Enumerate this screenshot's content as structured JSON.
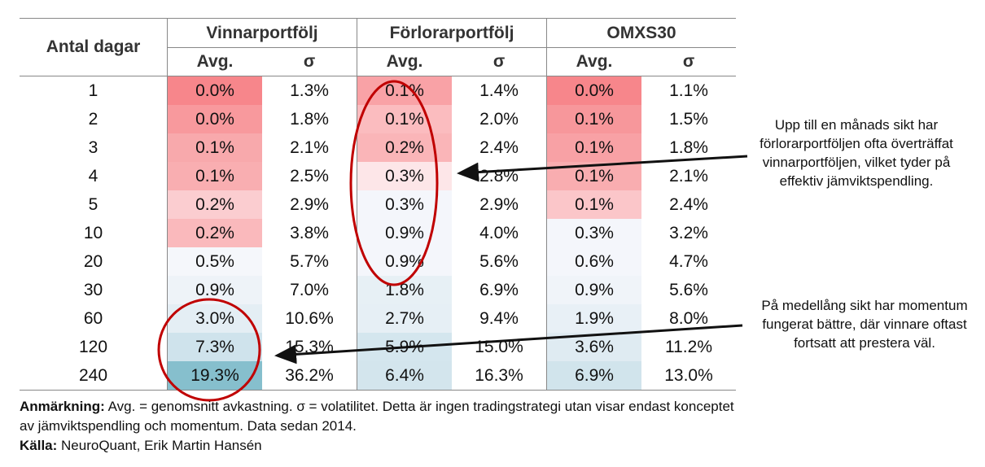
{
  "table": {
    "header": {
      "first": "Antal dagar",
      "groups": [
        "Vinnarportfölj",
        "Förlorarportfölj",
        "OMXS30"
      ],
      "sub": [
        "Avg.",
        "σ",
        "Avg.",
        "σ",
        "Avg.",
        "σ"
      ]
    },
    "rows": [
      {
        "days": "1",
        "cells": [
          "0.0%",
          "1.3%",
          "0.1%",
          "1.4%",
          "0.0%",
          "1.1%"
        ],
        "fills": [
          "#f7868b",
          "#ffffff",
          "#f9a2a6",
          "#ffffff",
          "#f7868b",
          "#ffffff"
        ]
      },
      {
        "days": "2",
        "cells": [
          "0.0%",
          "1.8%",
          "0.1%",
          "2.0%",
          "0.1%",
          "1.5%"
        ],
        "fills": [
          "#f8999d",
          "#ffffff",
          "#fbbcbf",
          "#ffffff",
          "#f7979b",
          "#ffffff"
        ]
      },
      {
        "days": "3",
        "cells": [
          "0.1%",
          "2.1%",
          "0.2%",
          "2.4%",
          "0.1%",
          "1.8%"
        ],
        "fills": [
          "#f8a9ac",
          "#ffffff",
          "#fab5b8",
          "#ffffff",
          "#f8a1a5",
          "#ffffff"
        ]
      },
      {
        "days": "4",
        "cells": [
          "0.1%",
          "2.5%",
          "0.3%",
          "2.8%",
          "0.1%",
          "2.1%"
        ],
        "fills": [
          "#f9aeb1",
          "#ffffff",
          "#fde6e8",
          "#ffffff",
          "#f9adb0",
          "#ffffff"
        ]
      },
      {
        "days": "5",
        "cells": [
          "0.2%",
          "2.9%",
          "0.3%",
          "2.9%",
          "0.1%",
          "2.4%"
        ],
        "fills": [
          "#fbcdd0",
          "#ffffff",
          "#f4f6fb",
          "#ffffff",
          "#fbc6c9",
          "#ffffff"
        ]
      },
      {
        "days": "10",
        "cells": [
          "0.2%",
          "3.8%",
          "0.9%",
          "4.0%",
          "0.3%",
          "3.2%"
        ],
        "fills": [
          "#fab9bc",
          "#ffffff",
          "#f4f6fb",
          "#ffffff",
          "#f4f6fb",
          "#ffffff"
        ]
      },
      {
        "days": "20",
        "cells": [
          "0.5%",
          "5.7%",
          "0.9%",
          "5.6%",
          "0.6%",
          "4.7%"
        ],
        "fills": [
          "#f5f7fb",
          "#ffffff",
          "#f4f6fb",
          "#ffffff",
          "#f4f6fb",
          "#ffffff"
        ]
      },
      {
        "days": "30",
        "cells": [
          "0.9%",
          "7.0%",
          "1.8%",
          "6.9%",
          "0.9%",
          "5.6%"
        ],
        "fills": [
          "#eef3f8",
          "#ffffff",
          "#e7f0f5",
          "#ffffff",
          "#f0f4f9",
          "#ffffff"
        ]
      },
      {
        "days": "60",
        "cells": [
          "3.0%",
          "10.6%",
          "2.7%",
          "9.4%",
          "1.9%",
          "8.0%"
        ],
        "fills": [
          "#e4eef4",
          "#ffffff",
          "#e6eff5",
          "#ffffff",
          "#e8f0f6",
          "#ffffff"
        ]
      },
      {
        "days": "120",
        "cells": [
          "7.3%",
          "15.3%",
          "5.9%",
          "15.0%",
          "3.6%",
          "11.2%"
        ],
        "fills": [
          "#cfe3ec",
          "#ffffff",
          "#d4e6ee",
          "#ffffff",
          "#dfebf2",
          "#ffffff"
        ]
      },
      {
        "days": "240",
        "cells": [
          "19.3%",
          "36.2%",
          "6.4%",
          "16.3%",
          "6.9%",
          "13.0%"
        ],
        "fills": [
          "#86bfcd",
          "#ffffff",
          "#d3e5ed",
          "#ffffff",
          "#d1e4ec",
          "#ffffff"
        ]
      }
    ]
  },
  "annotations": [
    "Upp till en månads sikt har förlorarportföljen ofta överträffat vinnarportföljen, vilket tyder på effektiv jämviktspendling.",
    "På medellång sikt har momentum fungerat bättre, där vinnare oftast fortsatt att prestera väl."
  ],
  "footer": {
    "note_label": "Anmärkning:",
    "note": "Avg. = genomsnitt avkastning. σ = volatilitet. Detta är ingen tradingstrategi utan visar endast konceptet av jämviktspendling och momentum. Data sedan 2014.",
    "source_label": "Källa:",
    "source": "NeuroQuant, Erik Martin Hansén"
  }
}
